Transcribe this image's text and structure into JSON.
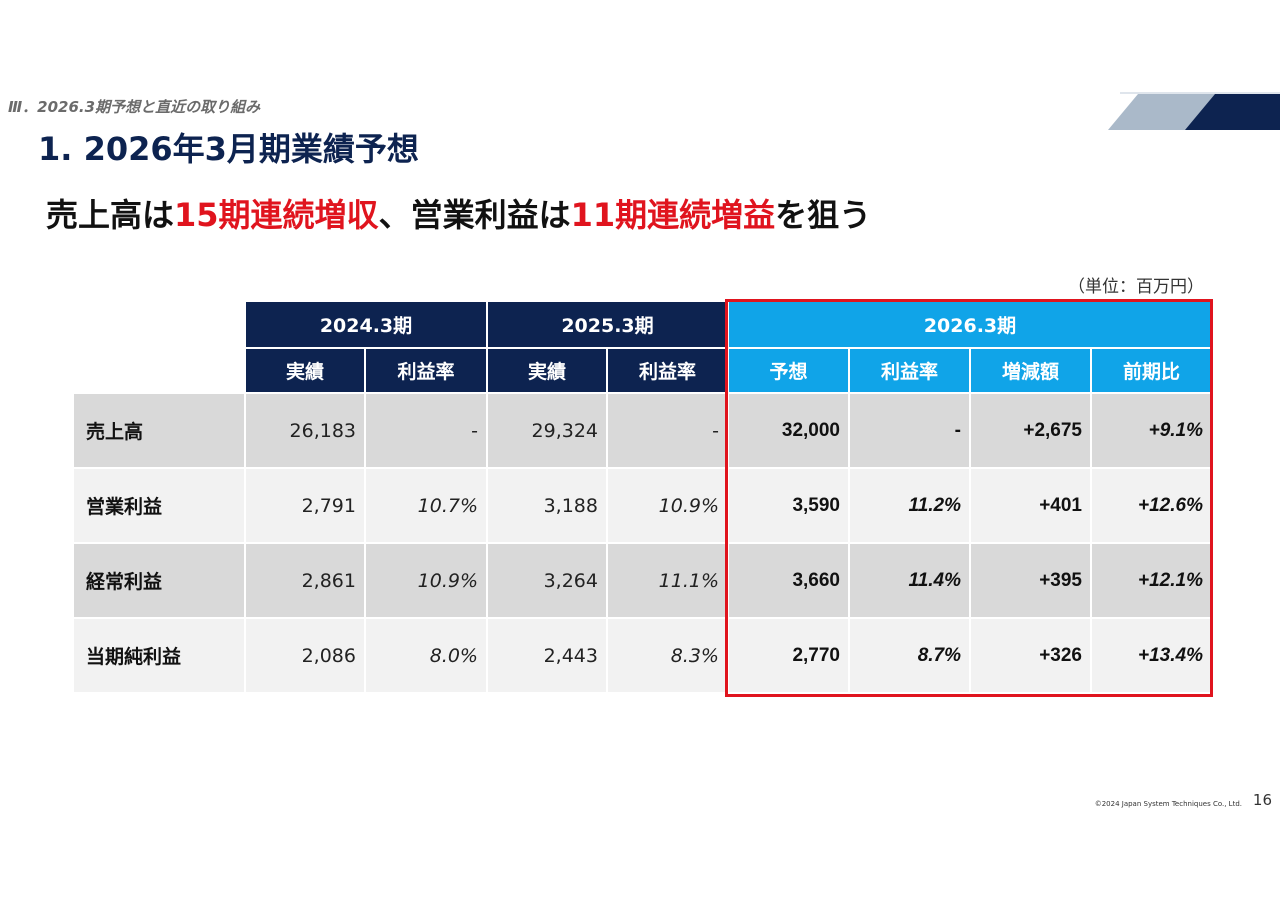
{
  "slide": {
    "section_label": "Ⅲ．2026.3期予想と直近の取り組み",
    "title": "1. 2026年3月期業績予想",
    "headline": {
      "part1": "売上高は",
      "highlight1": "15期連続増収",
      "part2": "、営業利益は",
      "highlight2": "11期連続増益",
      "part3": "を狙う"
    },
    "unit": "（単位：百万円）",
    "copyright": "©2024 Japan System Techniques Co., Ltd.",
    "page_number": "16"
  },
  "colors": {
    "navy": "#0d2350",
    "cyan": "#10a4e8",
    "highlight_red": "#e0141e"
  },
  "table": {
    "periods": [
      "2024.3期",
      "2025.3期",
      "2026.3期"
    ],
    "subheaders": [
      "実績",
      "利益率",
      "実績",
      "利益率",
      "予想",
      "利益率",
      "増減額",
      "前期比"
    ],
    "rows": [
      {
        "label": "売上高",
        "values": [
          "26,183",
          "-",
          "29,324",
          "-",
          "32,000",
          "-",
          "+2,675",
          "+9.1%"
        ]
      },
      {
        "label": "営業利益",
        "values": [
          "2,791",
          "10.7%",
          "3,188",
          "10.9%",
          "3,590",
          "11.2%",
          "+401",
          "+12.6%"
        ]
      },
      {
        "label": "経常利益",
        "values": [
          "2,861",
          "10.9%",
          "3,264",
          "11.1%",
          "3,660",
          "11.4%",
          "+395",
          "+12.1%"
        ]
      },
      {
        "label": "当期純利益",
        "values": [
          "2,086",
          "8.0%",
          "2,443",
          "8.3%",
          "2,770",
          "8.7%",
          "+326",
          "+13.4%"
        ]
      }
    ]
  }
}
